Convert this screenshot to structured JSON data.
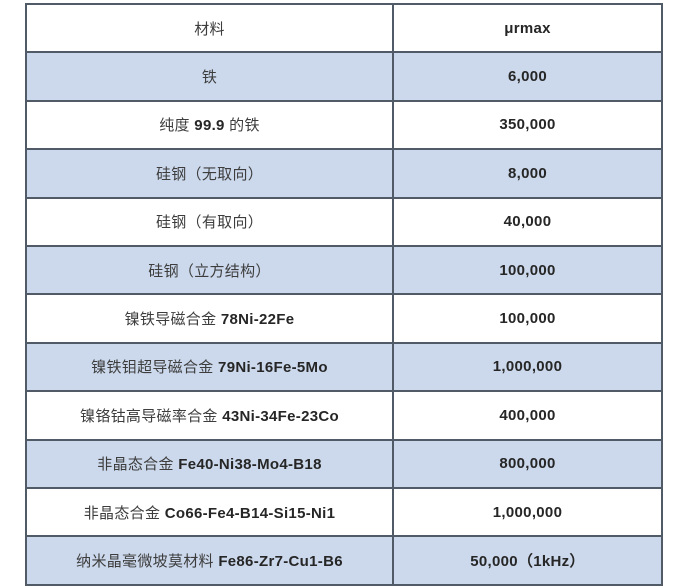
{
  "chart_data": {
    "type": "table",
    "title": "",
    "columns": [
      "材料",
      "μrmax"
    ],
    "rows": [
      [
        "铁",
        "6,000"
      ],
      [
        "纯度 99.9 的铁",
        "350,000"
      ],
      [
        "硅钢（无取向）",
        "8,000"
      ],
      [
        "硅钢（有取向）",
        "40,000"
      ],
      [
        "硅钢（立方结构）",
        "100,000"
      ],
      [
        "镍铁导磁合金 78Ni-22Fe",
        "100,000"
      ],
      [
        "镍铁钼超导磁合金 79Ni-16Fe-5Mo",
        "1,000,000"
      ],
      [
        "镍铬钴高导磁率合金 43Ni-34Fe-23Co",
        "400,000"
      ],
      [
        "非晶态合金 Fe40-Ni38-Mo4-B18",
        "800,000"
      ],
      [
        "非晶态合金 Co66-Fe4-B14-Si15-Ni1",
        "1,000,000"
      ],
      [
        "纳米晶毫微坡莫材料 Fe86-Zr7-Cu1-B6",
        "50,000（1kHz）"
      ]
    ],
    "layout": {
      "shaded_row_pattern": "odd data rows shaded",
      "grid": true
    }
  },
  "table": {
    "header": {
      "material": "材料",
      "value": "μrmax"
    },
    "colors": {
      "row_shade": "#ccd9ec",
      "border": "#515a67",
      "text": "#3d3d3d"
    },
    "rows": [
      {
        "shade": true,
        "material": [
          {
            "text": "铁",
            "bold": false
          }
        ],
        "value": "6,000"
      },
      {
        "shade": false,
        "material": [
          {
            "text": "纯度 ",
            "bold": false
          },
          {
            "text": "99.9",
            "bold": true
          },
          {
            "text": " 的铁",
            "bold": false
          }
        ],
        "value": "350,000"
      },
      {
        "shade": true,
        "material": [
          {
            "text": "硅钢（无取向）",
            "bold": false
          }
        ],
        "value": "8,000"
      },
      {
        "shade": false,
        "material": [
          {
            "text": "硅钢（有取向）",
            "bold": false
          }
        ],
        "value": "40,000"
      },
      {
        "shade": true,
        "material": [
          {
            "text": "硅钢（立方结构）",
            "bold": false
          }
        ],
        "value": "100,000"
      },
      {
        "shade": false,
        "material": [
          {
            "text": "镍铁导磁合金 ",
            "bold": false
          },
          {
            "text": "78Ni-22Fe",
            "bold": true
          }
        ],
        "value": "100,000"
      },
      {
        "shade": true,
        "material": [
          {
            "text": "镍铁钼超导磁合金 ",
            "bold": false
          },
          {
            "text": "79Ni-16Fe-5Mo",
            "bold": true
          }
        ],
        "value": "1,000,000"
      },
      {
        "shade": false,
        "material": [
          {
            "text": "镍铬钴高导磁率合金 ",
            "bold": false
          },
          {
            "text": "43Ni-34Fe-23Co",
            "bold": true
          }
        ],
        "value": "400,000"
      },
      {
        "shade": true,
        "material": [
          {
            "text": "非晶态合金 ",
            "bold": false
          },
          {
            "text": "Fe40-Ni38-Mo4-B18",
            "bold": true
          }
        ],
        "value": "800,000"
      },
      {
        "shade": false,
        "material": [
          {
            "text": "非晶态合金 ",
            "bold": false
          },
          {
            "text": "Co66-Fe4-B14-Si15-Ni1",
            "bold": true
          }
        ],
        "value": "1,000,000"
      },
      {
        "shade": true,
        "material": [
          {
            "text": "纳米晶毫微坡莫材料 ",
            "bold": false
          },
          {
            "text": "Fe86-Zr7-Cu1-B6",
            "bold": true
          }
        ],
        "value": "50,000（1kHz）"
      }
    ]
  }
}
